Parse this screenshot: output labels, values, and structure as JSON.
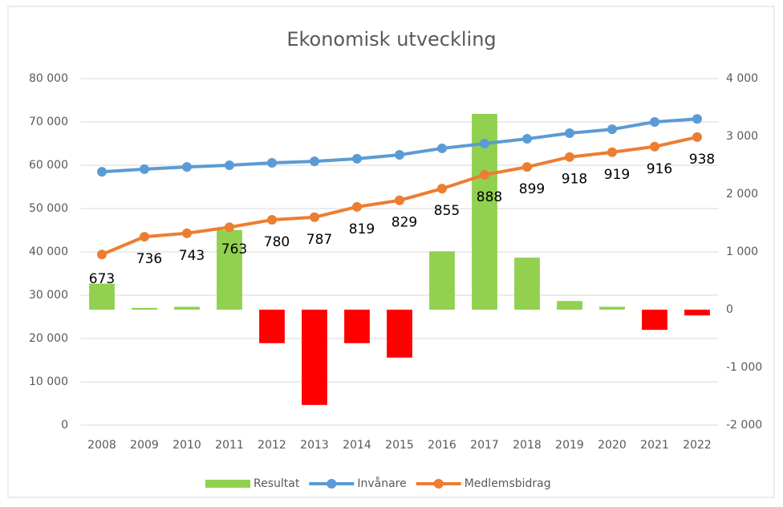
{
  "chart_data": {
    "type": "combo",
    "title": "Ekonomisk utveckling",
    "categories": [
      "2008",
      "2009",
      "2010",
      "2011",
      "2012",
      "2013",
      "2014",
      "2015",
      "2016",
      "2017",
      "2018",
      "2019",
      "2020",
      "2021",
      "2022"
    ],
    "series": [
      {
        "name": "Resultat",
        "type": "bar",
        "axis": "y2",
        "color": "#92d050",
        "negative_color": "#ff0000",
        "values": [
          450,
          30,
          50,
          1380,
          -580,
          -1650,
          -580,
          -830,
          1010,
          3390,
          900,
          150,
          50,
          -350,
          -100
        ]
      },
      {
        "name": "Invånare",
        "type": "line",
        "color": "#5b9bd5",
        "values": [
          58500,
          59100,
          59600,
          60000,
          60550,
          60900,
          61500,
          62400,
          63900,
          65000,
          66100,
          67400,
          68300,
          70000,
          70700
        ]
      },
      {
        "name": "Medlemsbidrag",
        "type": "line",
        "color": "#ed7d31",
        "values": [
          39400,
          43500,
          44300,
          45700,
          47400,
          48000,
          50400,
          51900,
          54600,
          57800,
          59600,
          61900,
          63000,
          64300,
          66500
        ],
        "point_labels": [
          "673",
          "736",
          "743",
          "763",
          "780",
          "787",
          "819",
          "829",
          "855",
          "888",
          "899",
          "918",
          "919",
          "916",
          "938"
        ]
      }
    ],
    "ylim": [
      0,
      80000
    ],
    "yticks": [
      0,
      {
        "value": 10000,
        "label": "10 000"
      },
      {
        "value": 20000,
        "label": "20 000"
      },
      {
        "value": 30000,
        "label": "30 000"
      },
      {
        "value": 40000,
        "label": "40 000"
      },
      {
        "value": 50000,
        "label": "50 000"
      },
      {
        "value": 60000,
        "label": "60 000"
      },
      {
        "value": 70000,
        "label": "70 000"
      },
      {
        "value": 80000,
        "label": "80 000"
      }
    ],
    "y2lim": [
      -2000,
      4000
    ],
    "y2ticks": [
      {
        "value": -2000,
        "label": "-2 000"
      },
      {
        "value": -1000,
        "label": "-1 000"
      },
      0,
      {
        "value": 1000,
        "label": "1 000"
      },
      {
        "value": 2000,
        "label": "2 000"
      },
      {
        "value": 3000,
        "label": "3 000"
      },
      {
        "value": 4000,
        "label": "4 000"
      }
    ],
    "grid": true,
    "legend": "bottom"
  }
}
